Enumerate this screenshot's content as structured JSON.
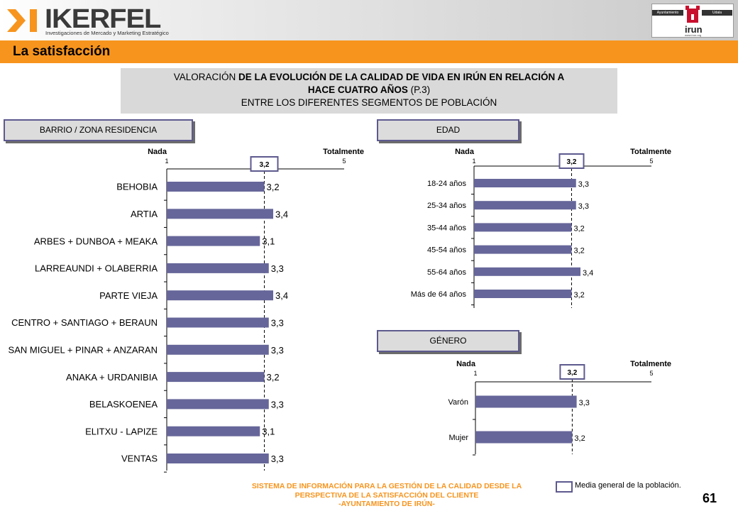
{
  "header": {
    "logo_text": "IKERFEL",
    "logo_subtitle": "Investigaciones de Mercado y Marketing Estratégico",
    "irun_logo": {
      "left_label": "Ayuntamiento",
      "right_label": "Udala",
      "word": "irun",
      "url": "www.irun.org"
    }
  },
  "section_title": "La satisfacción",
  "main_title": {
    "line1_normal": "VALORACIÓN ",
    "line1_bold": "DE LA EVOLUCIÓN DE LA CALIDAD DE VIDA EN IRÚN EN RELACIÓN A",
    "line2_bold": "HACE CUATRO AÑOS",
    "line2_normal": " (P.3)",
    "line3": "ENTRE LOS DIFERENTES SEGMENTOS DE POBLACIÓN"
  },
  "colors": {
    "bar": "#66669a",
    "accent": "#f7941d",
    "box_border": "#5d5a8e"
  },
  "chart_data": [
    {
      "type": "bar",
      "orientation": "horizontal",
      "title": "BARRIO / ZONA RESIDENCIA",
      "scale_left_label": "Nada",
      "scale_right_label": "Totalmente",
      "xlim": [
        1,
        5
      ],
      "tick_labels": [
        "1",
        "5"
      ],
      "mean": 3.2,
      "mean_label": "3,2",
      "categories": [
        "BEHOBIA",
        "ARTIA",
        "ARBES + DUNBOA + MEAKA",
        "LARREAUNDI + OLABERRIA",
        "PARTE VIEJA",
        "CENTRO + SANTIAGO + BERAUN",
        "SAN MIGUEL + PINAR + ANZARAN",
        "ANAKA + URDANIBIA",
        "BELASKOENEA",
        "ELITXU - LAPIZE",
        "VENTAS"
      ],
      "values": [
        3.2,
        3.4,
        3.1,
        3.3,
        3.4,
        3.3,
        3.3,
        3.2,
        3.3,
        3.1,
        3.3
      ],
      "value_labels": [
        "3,2",
        "3,4",
        "3,1",
        "3,3",
        "3,4",
        "3,3",
        "3,3",
        "3,2",
        "3,3",
        "3,1",
        "3,3"
      ]
    },
    {
      "type": "bar",
      "orientation": "horizontal",
      "title": "EDAD",
      "scale_left_label": "Nada",
      "scale_right_label": "Totalmente",
      "xlim": [
        1,
        5
      ],
      "tick_labels": [
        "1",
        "5"
      ],
      "mean": 3.2,
      "mean_label": "3,2",
      "categories": [
        "18-24 años",
        "25-34 años",
        "35-44 años",
        "45-54 años",
        "55-64 años",
        "Más de 64 años"
      ],
      "values": [
        3.3,
        3.3,
        3.2,
        3.2,
        3.4,
        3.2
      ],
      "value_labels": [
        "3,3",
        "3,3",
        "3,2",
        "3,2",
        "3,4",
        "3,2"
      ]
    },
    {
      "type": "bar",
      "orientation": "horizontal",
      "title": "GÉNERO",
      "scale_left_label": "Nada",
      "scale_right_label": "Totalmente",
      "xlim": [
        1,
        5
      ],
      "tick_labels": [
        "1",
        "5"
      ],
      "mean": 3.2,
      "mean_label": "3,2",
      "categories": [
        "Varón",
        "Mujer"
      ],
      "values": [
        3.3,
        3.2
      ],
      "value_labels": [
        "3,3",
        "3,2"
      ]
    }
  ],
  "footer": {
    "lines": [
      "SISTEMA DE INFORMACIÓN PARA LA GESTIÓN DE LA CALIDAD DESDE LA",
      "PERSPECTIVA DE LA SATISFACCIÓN DEL CLIENTE",
      "-AYUNTAMIENTO DE IRÚN-"
    ],
    "legend_label": "Media general de la población.",
    "page_number": "61"
  }
}
